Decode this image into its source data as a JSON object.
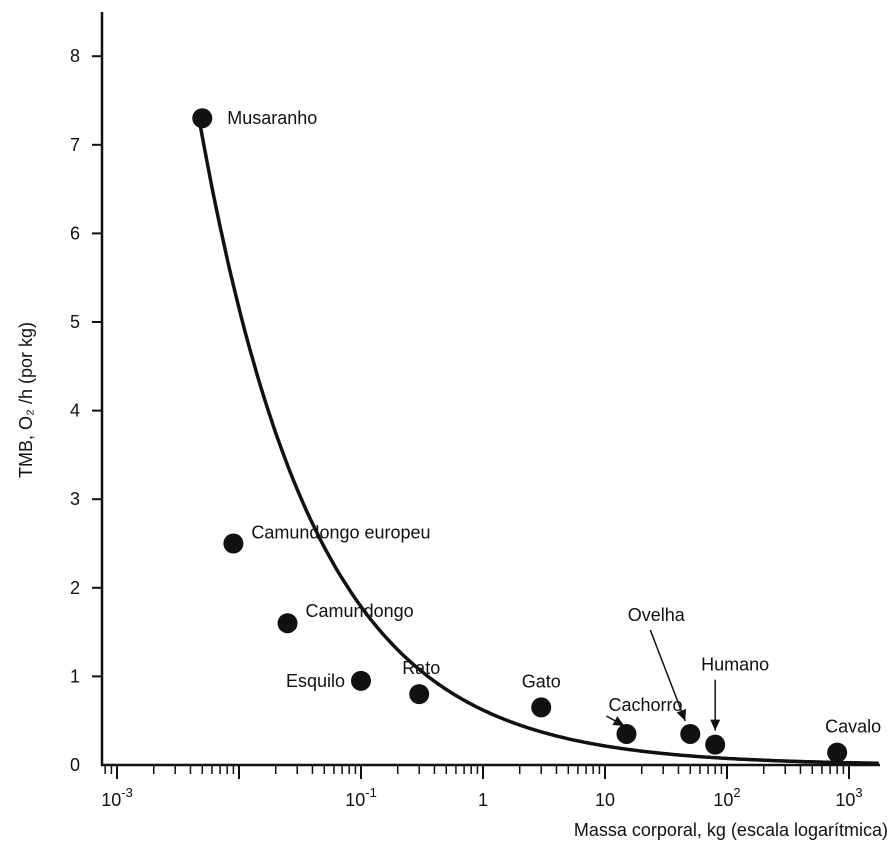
{
  "chart_data": {
    "type": "scatter",
    "ylabel": "TMB, O₂ /h (por kg)",
    "xlabel": "Massa corporal, kg (escala logarítmica)",
    "xscale": "log",
    "xlim": [
      0.0006,
      2000
    ],
    "ylim": [
      0,
      8.5
    ],
    "grid": false,
    "legend": "none",
    "y_ticks": [
      "0",
      "1",
      "2",
      "3",
      "4",
      "5",
      "6",
      "7",
      "8"
    ],
    "x_ticks": [
      {
        "value": 0.001,
        "base": "10",
        "exp": "-3"
      },
      {
        "value": 0.1,
        "base": "10",
        "exp": "-1"
      },
      {
        "value": 1,
        "base": "1",
        "exp": ""
      },
      {
        "value": 10,
        "base": "10",
        "exp": ""
      },
      {
        "value": 100,
        "base": "10",
        "exp": "2"
      },
      {
        "value": 1000,
        "base": "10",
        "exp": "3"
      }
    ],
    "points": [
      {
        "label": "Musaranho",
        "x": 0.005,
        "y": 7.3
      },
      {
        "label": "Camundongo europeu",
        "x": 0.009,
        "y": 2.5
      },
      {
        "label": "Camundongo",
        "x": 0.025,
        "y": 1.6
      },
      {
        "label": "Esquilo",
        "x": 0.1,
        "y": 0.95
      },
      {
        "label": "Rato",
        "x": 0.3,
        "y": 0.8
      },
      {
        "label": "Gato",
        "x": 3,
        "y": 0.65
      },
      {
        "label": "Cachorro",
        "x": 15,
        "y": 0.35
      },
      {
        "label": "Ovelha",
        "x": 50,
        "y": 0.35
      },
      {
        "label": "Humano",
        "x": 80,
        "y": 0.23
      },
      {
        "label": "Cavalo",
        "x": 800,
        "y": 0.14
      }
    ],
    "curve": {
      "description_formula": "y = a * x^b",
      "a": 0.62,
      "b": -0.46,
      "x_range": [
        0.0048,
        2000
      ]
    }
  }
}
